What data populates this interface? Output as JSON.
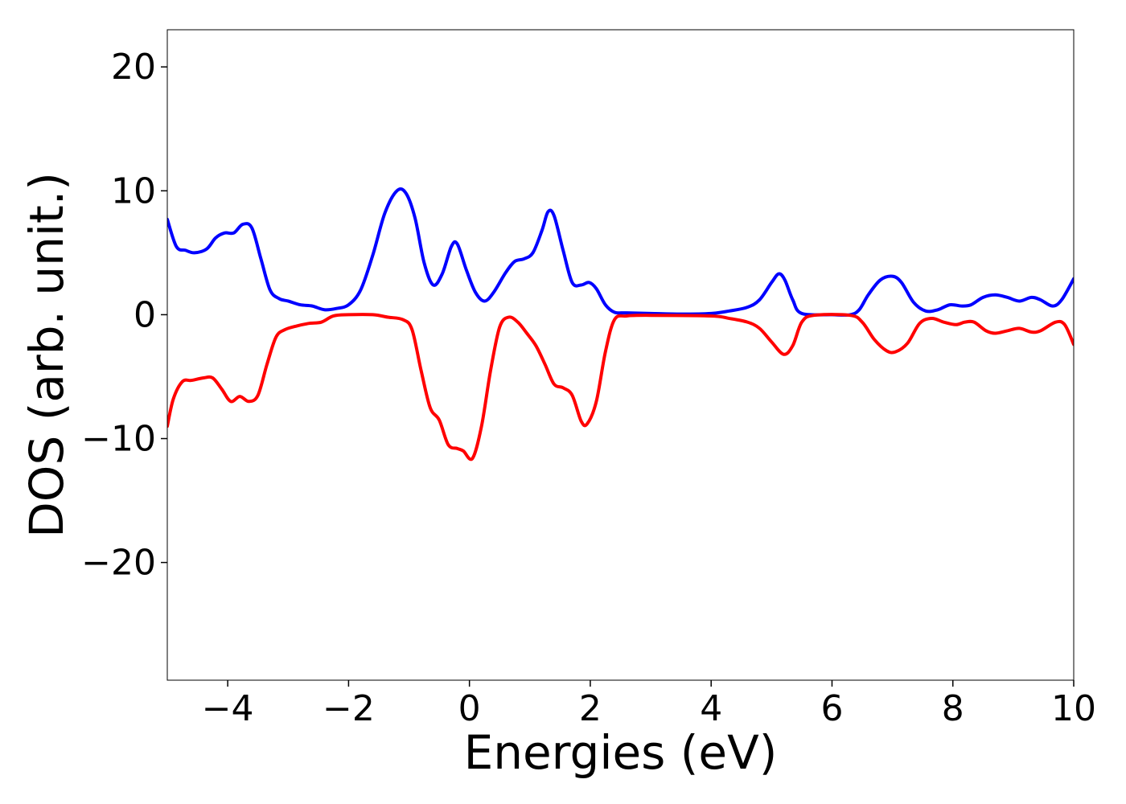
{
  "chart_data": {
    "type": "line",
    "title": "",
    "xlabel": "Energies (eV)",
    "ylabel": "DOS (arb. unit.)",
    "xlim": [
      -5,
      10
    ],
    "ylim": [
      -29.5,
      23
    ],
    "grid": false,
    "x_ticks": [
      -4,
      -2,
      0,
      2,
      4,
      6,
      8,
      10
    ],
    "x_tick_labels": [
      "−4",
      "−2",
      "0",
      "2",
      "4",
      "6",
      "8",
      "10"
    ],
    "y_ticks": [
      20,
      10,
      0,
      -10,
      -20
    ],
    "y_tick_labels": [
      "20",
      "10",
      "0",
      "−10",
      "−20"
    ],
    "series": [
      {
        "color": "#0000ff",
        "points": [
          [
            -5.0,
            7.7
          ],
          [
            -4.85,
            5.5
          ],
          [
            -4.7,
            5.2
          ],
          [
            -4.55,
            5.0
          ],
          [
            -4.35,
            5.3
          ],
          [
            -4.2,
            6.2
          ],
          [
            -4.05,
            6.6
          ],
          [
            -3.9,
            6.6
          ],
          [
            -3.75,
            7.3
          ],
          [
            -3.6,
            7.0
          ],
          [
            -3.45,
            4.5
          ],
          [
            -3.3,
            2.0
          ],
          [
            -3.15,
            1.3
          ],
          [
            -3.0,
            1.1
          ],
          [
            -2.8,
            0.8
          ],
          [
            -2.6,
            0.7
          ],
          [
            -2.4,
            0.4
          ],
          [
            -2.2,
            0.5
          ],
          [
            -2.0,
            0.8
          ],
          [
            -1.8,
            2.0
          ],
          [
            -1.6,
            4.8
          ],
          [
            -1.4,
            8.2
          ],
          [
            -1.2,
            10.0
          ],
          [
            -1.05,
            9.8
          ],
          [
            -0.9,
            7.8
          ],
          [
            -0.75,
            4.2
          ],
          [
            -0.6,
            2.4
          ],
          [
            -0.45,
            3.3
          ],
          [
            -0.3,
            5.5
          ],
          [
            -0.2,
            5.7
          ],
          [
            -0.05,
            3.6
          ],
          [
            0.1,
            1.8
          ],
          [
            0.25,
            1.1
          ],
          [
            0.4,
            1.8
          ],
          [
            0.6,
            3.4
          ],
          [
            0.75,
            4.3
          ],
          [
            0.9,
            4.5
          ],
          [
            1.05,
            5.0
          ],
          [
            1.2,
            6.8
          ],
          [
            1.3,
            8.3
          ],
          [
            1.4,
            8.0
          ],
          [
            1.55,
            5.2
          ],
          [
            1.7,
            2.6
          ],
          [
            1.85,
            2.4
          ],
          [
            1.98,
            2.6
          ],
          [
            2.1,
            2.1
          ],
          [
            2.25,
            0.8
          ],
          [
            2.4,
            0.2
          ],
          [
            2.6,
            0.15
          ],
          [
            3.0,
            0.1
          ],
          [
            3.5,
            0.05
          ],
          [
            4.0,
            0.1
          ],
          [
            4.3,
            0.3
          ],
          [
            4.6,
            0.6
          ],
          [
            4.8,
            1.2
          ],
          [
            5.0,
            2.6
          ],
          [
            5.12,
            3.3
          ],
          [
            5.22,
            2.8
          ],
          [
            5.35,
            1.2
          ],
          [
            5.5,
            0.1
          ],
          [
            6.0,
            0.0
          ],
          [
            6.3,
            0.0
          ],
          [
            6.45,
            0.4
          ],
          [
            6.6,
            1.6
          ],
          [
            6.8,
            2.8
          ],
          [
            7.0,
            3.1
          ],
          [
            7.15,
            2.6
          ],
          [
            7.35,
            1.0
          ],
          [
            7.55,
            0.3
          ],
          [
            7.75,
            0.4
          ],
          [
            7.95,
            0.8
          ],
          [
            8.15,
            0.7
          ],
          [
            8.3,
            0.8
          ],
          [
            8.5,
            1.4
          ],
          [
            8.7,
            1.6
          ],
          [
            8.9,
            1.4
          ],
          [
            9.1,
            1.1
          ],
          [
            9.3,
            1.4
          ],
          [
            9.45,
            1.2
          ],
          [
            9.65,
            0.7
          ],
          [
            9.8,
            1.2
          ],
          [
            10.0,
            2.9
          ]
        ]
      },
      {
        "color": "#ff0000",
        "points": [
          [
            -5.0,
            -9.0
          ],
          [
            -4.9,
            -6.8
          ],
          [
            -4.75,
            -5.4
          ],
          [
            -4.6,
            -5.3
          ],
          [
            -4.4,
            -5.1
          ],
          [
            -4.25,
            -5.1
          ],
          [
            -4.1,
            -6.0
          ],
          [
            -3.95,
            -7.0
          ],
          [
            -3.8,
            -6.6
          ],
          [
            -3.65,
            -7.0
          ],
          [
            -3.5,
            -6.5
          ],
          [
            -3.35,
            -4.0
          ],
          [
            -3.2,
            -1.8
          ],
          [
            -3.05,
            -1.2
          ],
          [
            -2.85,
            -0.9
          ],
          [
            -2.65,
            -0.7
          ],
          [
            -2.45,
            -0.6
          ],
          [
            -2.25,
            -0.1
          ],
          [
            -2.0,
            0.0
          ],
          [
            -1.6,
            0.0
          ],
          [
            -1.35,
            -0.2
          ],
          [
            -1.1,
            -0.4
          ],
          [
            -0.95,
            -1.2
          ],
          [
            -0.8,
            -4.5
          ],
          [
            -0.65,
            -7.5
          ],
          [
            -0.5,
            -8.5
          ],
          [
            -0.35,
            -10.5
          ],
          [
            -0.2,
            -10.8
          ],
          [
            -0.1,
            -11.0
          ],
          [
            0.05,
            -11.6
          ],
          [
            0.2,
            -9.0
          ],
          [
            0.35,
            -4.5
          ],
          [
            0.5,
            -1.0
          ],
          [
            0.65,
            -0.2
          ],
          [
            0.8,
            -0.6
          ],
          [
            0.95,
            -1.5
          ],
          [
            1.1,
            -2.5
          ],
          [
            1.25,
            -4.0
          ],
          [
            1.4,
            -5.6
          ],
          [
            1.55,
            -5.9
          ],
          [
            1.7,
            -6.5
          ],
          [
            1.85,
            -8.6
          ],
          [
            1.95,
            -8.8
          ],
          [
            2.1,
            -7.0
          ],
          [
            2.25,
            -3.0
          ],
          [
            2.4,
            -0.4
          ],
          [
            2.6,
            -0.1
          ],
          [
            3.0,
            -0.05
          ],
          [
            4.0,
            -0.1
          ],
          [
            4.3,
            -0.3
          ],
          [
            4.6,
            -0.6
          ],
          [
            4.8,
            -1.1
          ],
          [
            5.0,
            -2.2
          ],
          [
            5.2,
            -3.2
          ],
          [
            5.35,
            -2.5
          ],
          [
            5.5,
            -0.6
          ],
          [
            5.7,
            -0.05
          ],
          [
            6.3,
            -0.05
          ],
          [
            6.5,
            -0.6
          ],
          [
            6.7,
            -2.0
          ],
          [
            6.9,
            -2.9
          ],
          [
            7.05,
            -3.0
          ],
          [
            7.25,
            -2.3
          ],
          [
            7.45,
            -0.7
          ],
          [
            7.65,
            -0.3
          ],
          [
            7.85,
            -0.6
          ],
          [
            8.05,
            -0.8
          ],
          [
            8.2,
            -0.6
          ],
          [
            8.35,
            -0.6
          ],
          [
            8.55,
            -1.3
          ],
          [
            8.7,
            -1.5
          ],
          [
            8.9,
            -1.3
          ],
          [
            9.1,
            -1.1
          ],
          [
            9.3,
            -1.4
          ],
          [
            9.45,
            -1.3
          ],
          [
            9.7,
            -0.6
          ],
          [
            9.85,
            -0.8
          ],
          [
            10.0,
            -2.4
          ]
        ]
      }
    ]
  }
}
